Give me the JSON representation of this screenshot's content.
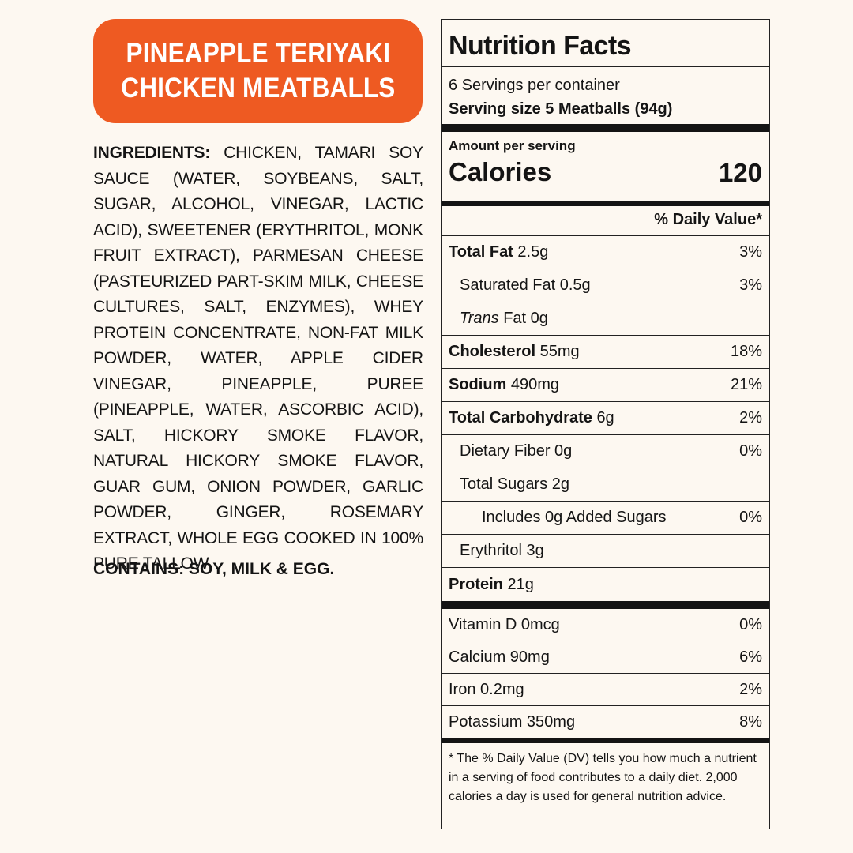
{
  "product": {
    "title_line1": "PINEAPPLE TERIYAKI",
    "title_line2": "CHICKEN MEATBALLS"
  },
  "ingredients": {
    "label": "INGREDIENTS:",
    "text": "CHICKEN, TAMARI SOY SAUCE (WATER, SOYBEANS, SALT, SUGAR, ALCOHOL, VINEGAR, LACTIC ACID), SWEETENER (ERYTHRITOL, MONK FRUIT EXTRACT), PARMESAN CHEESE (PASTEURIZED PART-SKIM MILK, CHEESE CULTURES, SALT, ENZYMES), WHEY PROTEIN CONCENTRATE, NON-FAT MILK POWDER, WATER, APPLE CIDER VINEGAR, PINEAPPLE, PUREE (PINEAPPLE, WATER, ASCORBIC ACID), SALT, HICKORY SMOKE FLAVOR, NATURAL HICKORY SMOKE FLAVOR, GUAR GUM, ONION POWDER, GARLIC POWDER, GINGER, ROSEMARY EXTRACT, WHOLE EGG COOKED IN 100% PURE TALLOW.",
    "contains": "CONTAINS: SOY, MILK & EGG."
  },
  "nutrition": {
    "heading": "Nutrition Facts",
    "servings_per_container": "6 Servings per container",
    "serving_size": "Serving size 5 Meatballs (94g)",
    "amount_per_serving": "Amount per serving",
    "calories_label": "Calories",
    "calories_value": "120",
    "dv_header": "% Daily Value*",
    "rows": [
      {
        "name": "Total Fat",
        "amount": "2.5g",
        "dv": "3%"
      },
      {
        "name": "Saturated Fat",
        "amount": "0.5g",
        "dv": "3%"
      },
      {
        "name": "Trans",
        "amount": "Fat 0g",
        "dv": ""
      },
      {
        "name": "Cholesterol",
        "amount": "55mg",
        "dv": "18%"
      },
      {
        "name": "Sodium",
        "amount": "490mg",
        "dv": "21%"
      },
      {
        "name": "Total Carbohydrate",
        "amount": "6g",
        "dv": "2%"
      },
      {
        "name": "Dietary Fiber",
        "amount": "0g",
        "dv": "0%"
      },
      {
        "name": "Total Sugars",
        "amount": "2g",
        "dv": ""
      },
      {
        "name": "Includes 0g Added Sugars",
        "amount": "",
        "dv": "0%"
      },
      {
        "name": "Erythritol",
        "amount": "3g",
        "dv": ""
      },
      {
        "name": "Protein",
        "amount": "21g",
        "dv": ""
      }
    ],
    "vitamins": [
      {
        "name": "Vitamin D 0mcg",
        "dv": "0%"
      },
      {
        "name": "Calcium 90mg",
        "dv": "6%"
      },
      {
        "name": "Iron 0.2mg",
        "dv": "2%"
      },
      {
        "name": "Potassium 350mg",
        "dv": "8%"
      }
    ],
    "footnote": "* The % Daily Value (DV) tells you how much a nutrient in a serving of food contributes to a daily diet. 2,000 calories a day is used for general nutrition advice."
  },
  "colors": {
    "accent": "#ee5a22",
    "background": "#fdf8f1",
    "text": "#141414"
  }
}
